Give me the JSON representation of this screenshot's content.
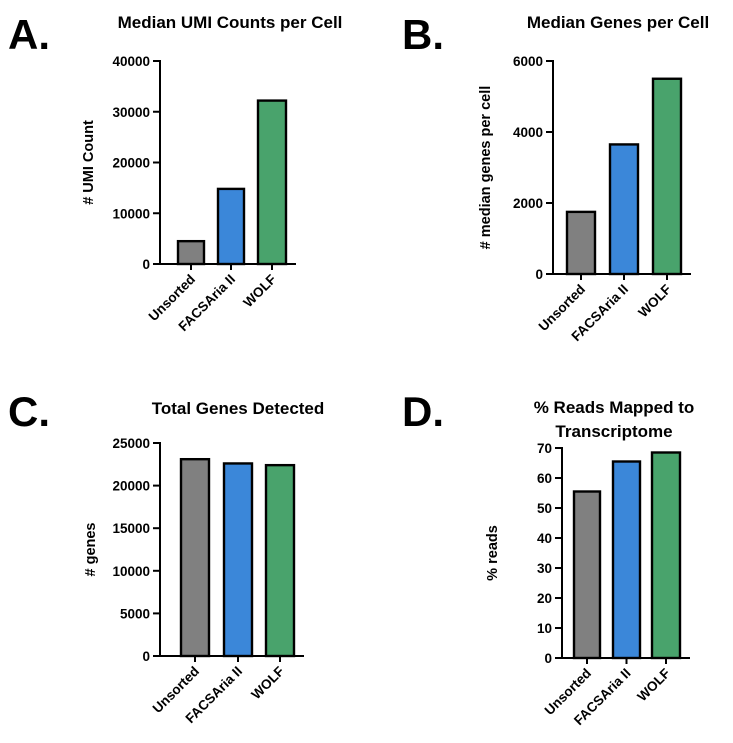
{
  "figure": {
    "panels": [
      {
        "letter": "A."
      },
      {
        "letter": "B."
      },
      {
        "letter": "C."
      },
      {
        "letter": "D."
      }
    ]
  },
  "colors": {
    "unsorted": "#808080",
    "facsaria": "#3b87d9",
    "wolf": "#49a36c",
    "stroke": "#000000"
  },
  "chart_data": [
    {
      "type": "bar",
      "title": "Median UMI Counts per Cell",
      "xlabel": "",
      "ylabel": "# UMI Count",
      "categories": [
        "Unsorted",
        "FACSAria II",
        "WOLF"
      ],
      "values": [
        4500,
        14800,
        32200
      ],
      "ylim": [
        0,
        40000
      ],
      "yticks": [
        "0",
        "10000",
        "20000",
        "30000",
        "40000"
      ],
      "grid": false,
      "legend": "none"
    },
    {
      "type": "bar",
      "title": "Median Genes per Cell",
      "xlabel": "",
      "ylabel": "# median genes per cell",
      "categories": [
        "Unsorted",
        "FACSAria II",
        "WOLF"
      ],
      "values": [
        1750,
        3650,
        5500
      ],
      "ylim": [
        0,
        6000
      ],
      "yticks": [
        "0",
        "2000",
        "4000",
        "6000"
      ],
      "grid": false,
      "legend": "none"
    },
    {
      "type": "bar",
      "title": "Total Genes Detected",
      "xlabel": "",
      "ylabel": "# genes",
      "categories": [
        "Unsorted",
        "FACSAria II",
        "WOLF"
      ],
      "values": [
        23100,
        22600,
        22400
      ],
      "ylim": [
        0,
        25000
      ],
      "yticks": [
        "0",
        "5000",
        "10000",
        "15000",
        "20000",
        "25000"
      ],
      "grid": false,
      "legend": "none"
    },
    {
      "type": "bar",
      "title": "% Reads Mapped to Transcriptome",
      "title_lines": [
        "% Reads Mapped to",
        "Transcriptome"
      ],
      "xlabel": "",
      "ylabel": "% reads",
      "categories": [
        "Unsorted",
        "FACSAria II",
        "WOLF"
      ],
      "values": [
        55.5,
        65.5,
        68.5
      ],
      "ylim": [
        0,
        70
      ],
      "yticks": [
        "0",
        "10",
        "20",
        "30",
        "40",
        "50",
        "60",
        "70"
      ],
      "grid": false,
      "legend": "none"
    }
  ]
}
